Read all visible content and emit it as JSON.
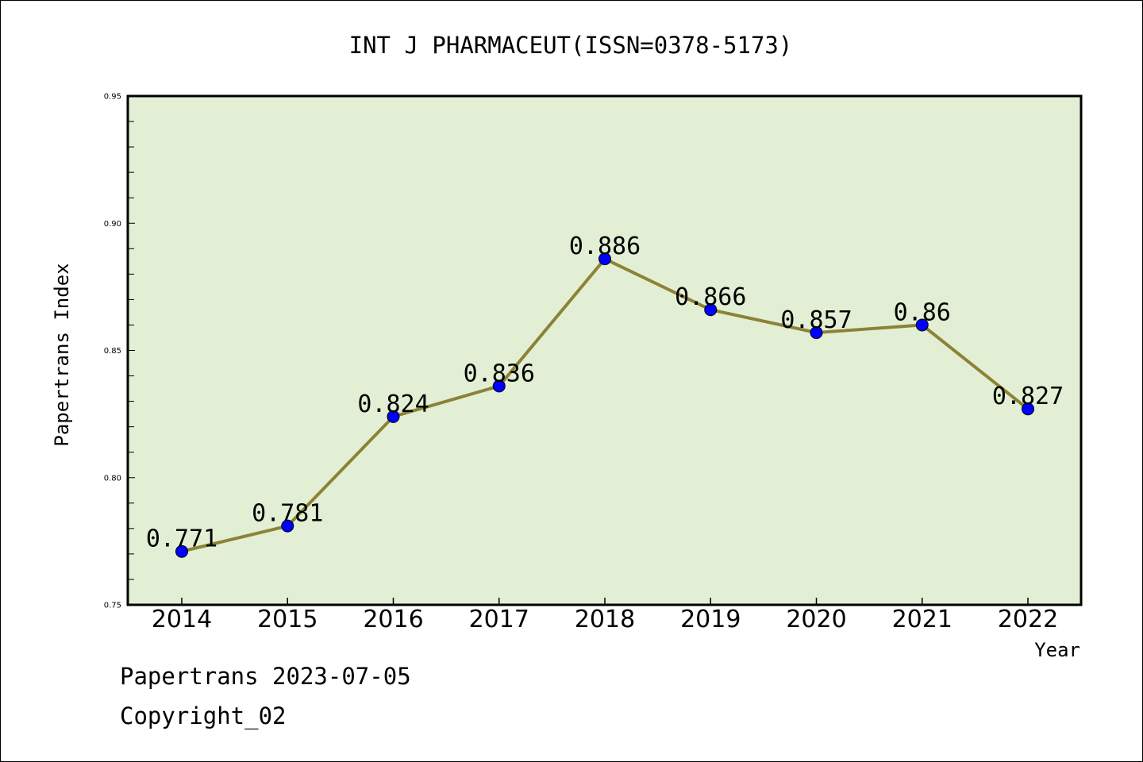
{
  "colors": {
    "plot_background": "#e2efd4",
    "line": "#8c8237",
    "marker": "#0000ff",
    "axis": "#000000"
  },
  "chart_data": {
    "type": "line",
    "title": "INT J PHARMACEUT(ISSN=0378-5173)",
    "xlabel": "Year",
    "ylabel": "Papertrans Index",
    "categories": [
      "2014",
      "2015",
      "2016",
      "2017",
      "2018",
      "2019",
      "2020",
      "2021",
      "2022"
    ],
    "series": [
      {
        "values": [
          0.771,
          0.781,
          0.824,
          0.836,
          0.886,
          0.866,
          0.857,
          0.86,
          0.827
        ],
        "data_labels": [
          "0.771",
          "0.781",
          "0.824",
          "0.836",
          "0.886",
          "0.866",
          "0.857",
          "0.86",
          "0.827"
        ]
      }
    ],
    "ylim": [
      0.75,
      0.95
    ],
    "yticks": [
      "0.75",
      "0.80",
      "0.85",
      "0.90",
      "0.95"
    ],
    "grid": false,
    "legend": "none"
  },
  "footer": {
    "source_line": "Papertrans 2023-07-05",
    "copyright_line": "Copyright_02"
  }
}
